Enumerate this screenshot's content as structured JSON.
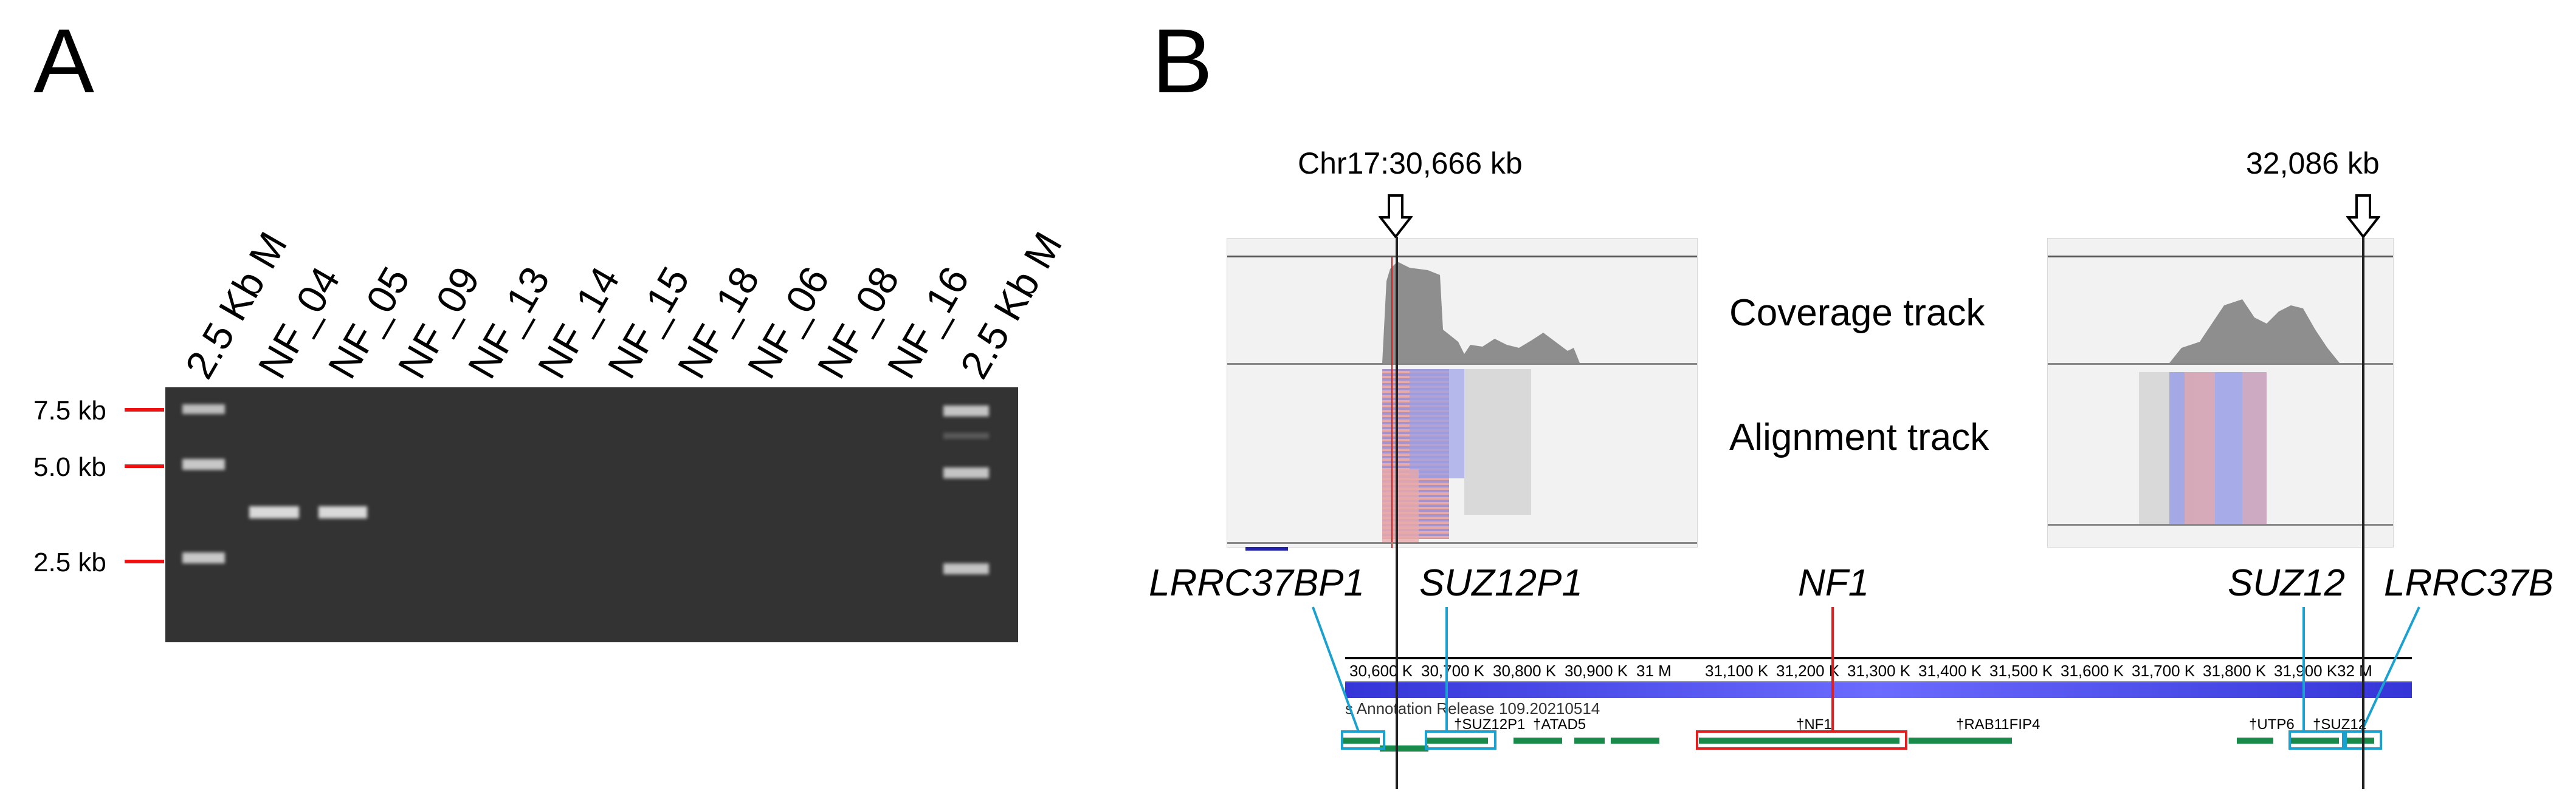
{
  "panel_a": {
    "letter": "A",
    "lanes": [
      "2.5 Kb M",
      "NF_04",
      "NF_05",
      "NF_09",
      "NF_13",
      "NF_14",
      "NF_15",
      "NF_18",
      "NF_06",
      "NF_08",
      "NF_16",
      "2.5 Kb M"
    ],
    "ladder": [
      "7.5 kb",
      "5.0 kb",
      "2.5 kb"
    ],
    "colors": {
      "gel": "#333333",
      "tick": "#e11111"
    }
  },
  "panel_b": {
    "letter": "B",
    "left_arrow_label": "Chr17:30,666 kb",
    "right_arrow_label": "32,086 kb",
    "coverage_label": "Coverage track",
    "alignment_label": "Alignment track",
    "genes": {
      "lrrc37bp1": "LRRC37BP1",
      "suz12p1": "SUZ12P1",
      "nf1": "NF1",
      "suz12": "SUZ12",
      "lrrc37b": "LRRC37B"
    },
    "scale_ticks": [
      "30,600 K",
      "30,700 K",
      "30,800 K",
      "30,900 K",
      "31 M",
      "31,100 K",
      "31,200 K",
      "31,300 K",
      "31,400 K",
      "31,500 K",
      "31,600 K",
      "31,700 K",
      "31,800 K",
      "31,900 K",
      "32 M"
    ],
    "annotation_release": "s Annotation Release 109.20210514",
    "small_genes": [
      "†SUZ12P1",
      "†ATAD5",
      "†NF1",
      "†RAB11FIP4",
      "†UTP6",
      "†SUZ12"
    ],
    "colors": {
      "highlight_blue": "#1aa1d0",
      "highlight_red": "#e02020",
      "gene": "#1a8a4a"
    }
  }
}
